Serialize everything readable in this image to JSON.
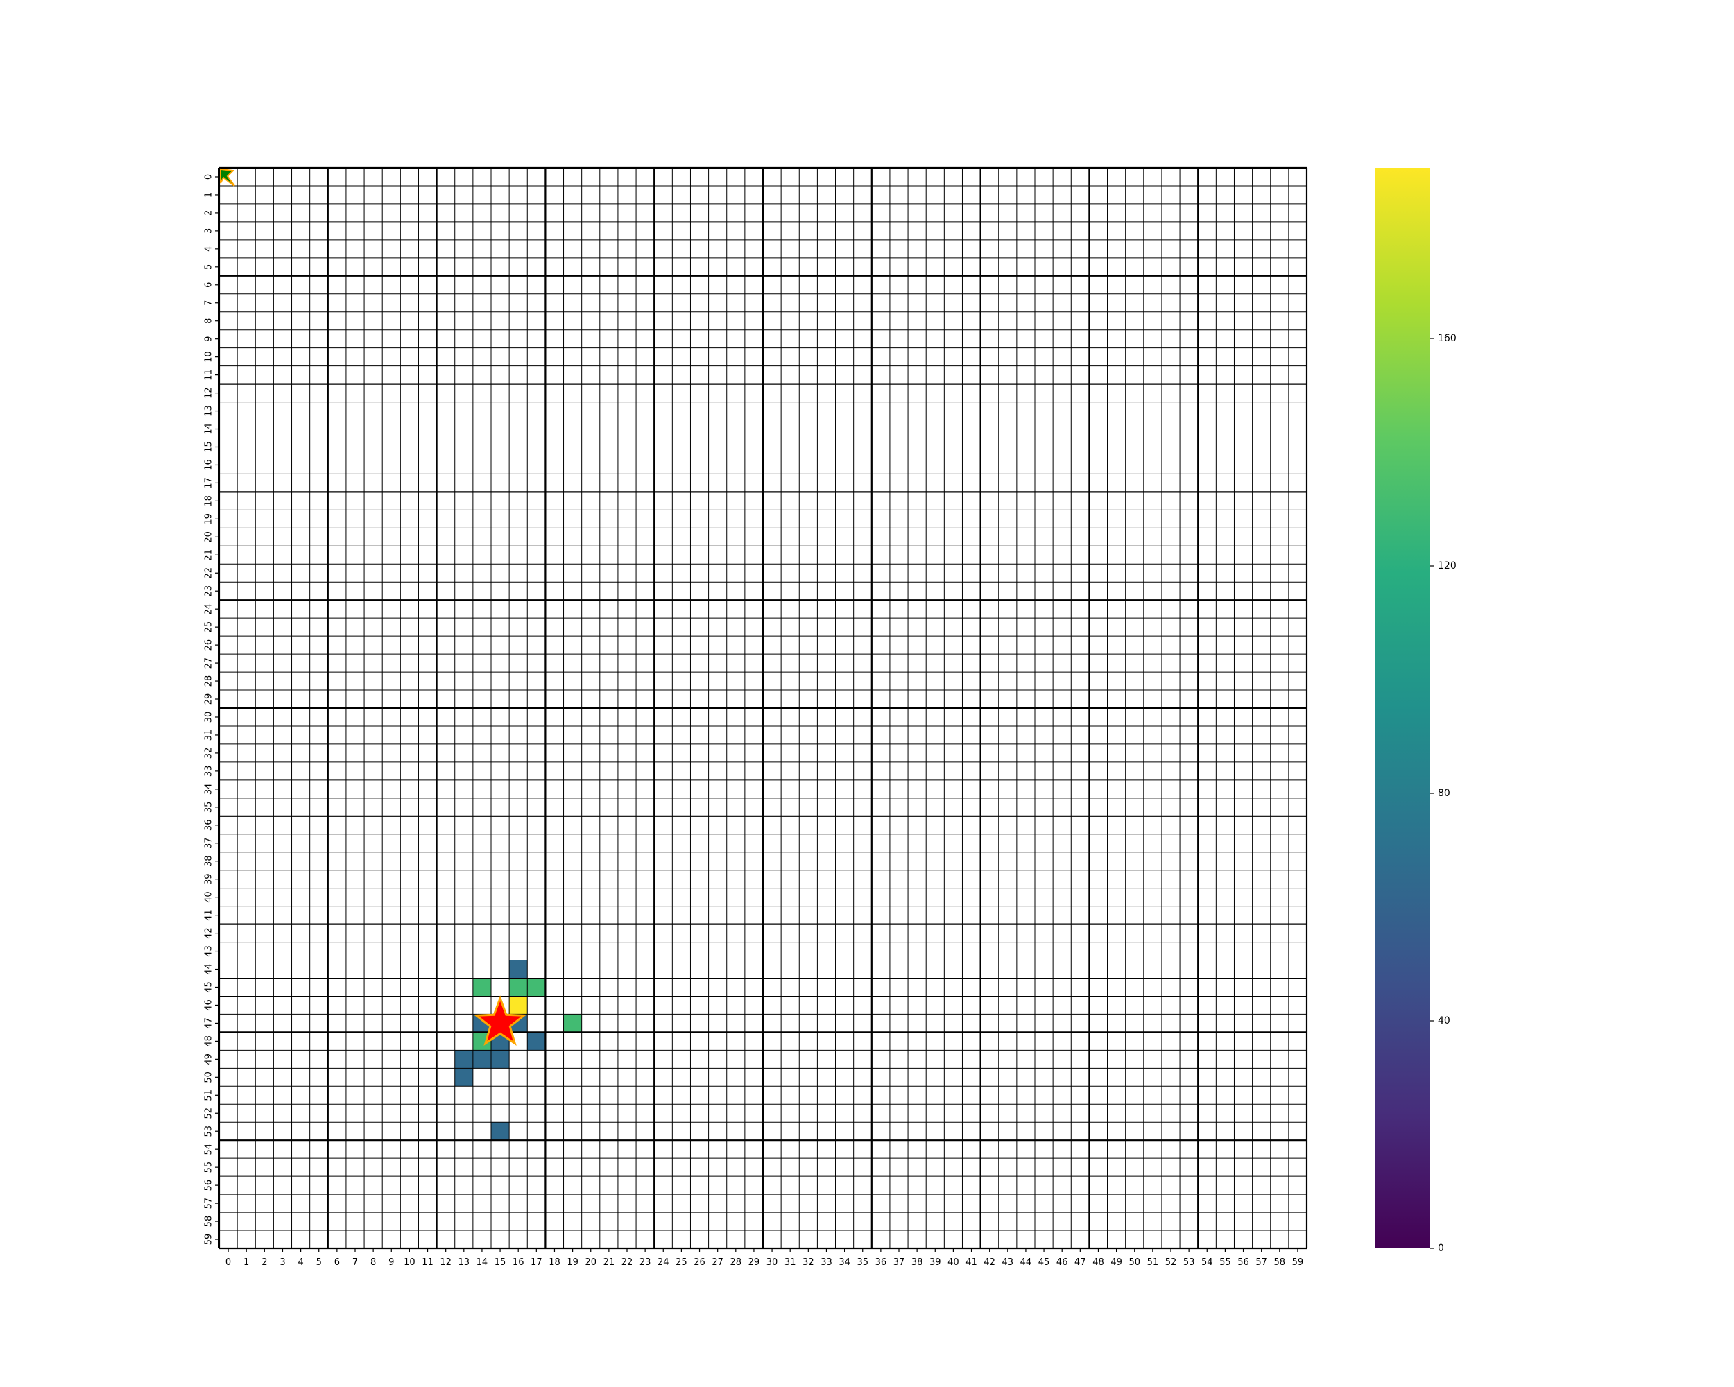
{
  "chart_data": {
    "type": "heatmap",
    "title": "",
    "xlabel": "",
    "ylabel": "",
    "rows": 60,
    "cols": 60,
    "x_tick_labels": [
      "0",
      "1",
      "2",
      "3",
      "4",
      "5",
      "6",
      "7",
      "8",
      "9",
      "10",
      "11",
      "12",
      "13",
      "14",
      "15",
      "16",
      "17",
      "18",
      "19",
      "20",
      "21",
      "22",
      "23",
      "24",
      "25",
      "26",
      "27",
      "28",
      "29",
      "30",
      "31",
      "32",
      "33",
      "34",
      "35",
      "36",
      "37",
      "38",
      "39",
      "40",
      "41",
      "42",
      "43",
      "44",
      "45",
      "46",
      "47",
      "48",
      "49",
      "50",
      "51",
      "52",
      "53",
      "54",
      "55",
      "56",
      "57",
      "58",
      "59"
    ],
    "y_tick_labels": [
      "0",
      "1",
      "2",
      "3",
      "4",
      "5",
      "6",
      "7",
      "8",
      "9",
      "10",
      "11",
      "12",
      "13",
      "14",
      "15",
      "16",
      "17",
      "18",
      "19",
      "20",
      "21",
      "22",
      "23",
      "24",
      "25",
      "26",
      "27",
      "28",
      "29",
      "30",
      "31",
      "32",
      "33",
      "34",
      "35",
      "36",
      "37",
      "38",
      "39",
      "40",
      "41",
      "42",
      "43",
      "44",
      "45",
      "46",
      "47",
      "48",
      "49",
      "50",
      "51",
      "52",
      "53",
      "54",
      "55",
      "56",
      "57",
      "58",
      "59"
    ],
    "cells": [
      {
        "row": 44,
        "col": 16,
        "value": 65
      },
      {
        "row": 45,
        "col": 14,
        "value": 130
      },
      {
        "row": 45,
        "col": 16,
        "value": 130
      },
      {
        "row": 45,
        "col": 17,
        "value": 130
      },
      {
        "row": 46,
        "col": 16,
        "value": 190
      },
      {
        "row": 47,
        "col": 14,
        "value": 65
      },
      {
        "row": 47,
        "col": 16,
        "value": 65
      },
      {
        "row": 47,
        "col": 19,
        "value": 130
      },
      {
        "row": 48,
        "col": 14,
        "value": 130
      },
      {
        "row": 48,
        "col": 15,
        "value": 65
      },
      {
        "row": 48,
        "col": 17,
        "value": 65
      },
      {
        "row": 49,
        "col": 13,
        "value": 65
      },
      {
        "row": 49,
        "col": 14,
        "value": 65
      },
      {
        "row": 49,
        "col": 15,
        "value": 65
      },
      {
        "row": 50,
        "col": 13,
        "value": 65
      },
      {
        "row": 53,
        "col": 15,
        "value": 65
      }
    ],
    "thick_gridline_every": 6,
    "markers": [
      {
        "type": "star",
        "row": 47,
        "col": 15,
        "color": "#ff0000",
        "edge_color": "#ffa500"
      },
      {
        "type": "arrow",
        "row": 0,
        "col": 0,
        "color": "#008000",
        "edge_color": "#ffa500",
        "direction": "down-right"
      }
    ],
    "colorbar": {
      "min": 0,
      "max": 190,
      "ticks": [
        0,
        40,
        80,
        120,
        160
      ],
      "colormap": "viridis"
    }
  },
  "colors": {
    "grid_line": "#000000",
    "background": "#ffffff"
  }
}
